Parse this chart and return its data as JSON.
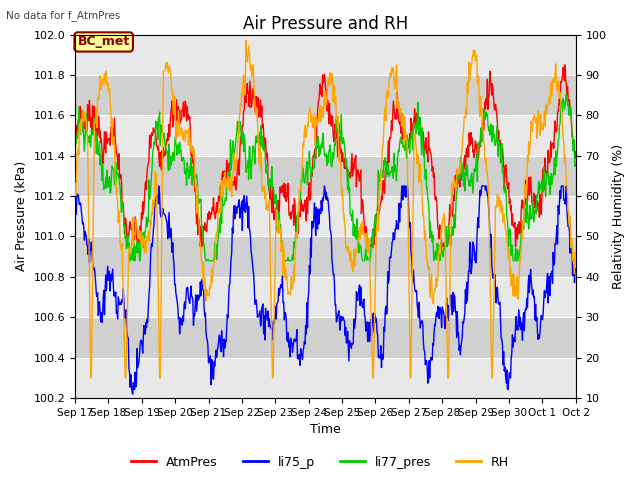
{
  "title": "Air Pressure and RH",
  "subtitle": "No data for f_AtmPres",
  "xlabel": "Time",
  "ylabel_left": "Air Pressure (kPa)",
  "ylabel_right": "Relativity Humidity (%)",
  "ylim_left": [
    100.2,
    102.0
  ],
  "ylim_right": [
    10,
    100
  ],
  "yticks_left": [
    100.2,
    100.4,
    100.6,
    100.8,
    101.0,
    101.2,
    101.4,
    101.6,
    101.8,
    102.0
  ],
  "yticks_right": [
    10,
    20,
    30,
    40,
    50,
    60,
    70,
    80,
    90,
    100
  ],
  "x_labels": [
    "Sep 17",
    "Sep 18",
    "Sep 19",
    "Sep 20",
    "Sep 21",
    "Sep 22",
    "Sep 23",
    "Sep 24",
    "Sep 25",
    "Sep 26",
    "Sep 27",
    "Sep 28",
    "Sep 29",
    "Sep 30",
    "Oct 1",
    "Oct 2"
  ],
  "legend_entries": [
    "AtmPres",
    "li75_p",
    "li77_pres",
    "RH"
  ],
  "line_colors": {
    "AtmPres": "#ff0000",
    "li75_p": "#0000ff",
    "li77_pres": "#00cc00",
    "RH": "#ffa500"
  },
  "annotation_text": "BC_met",
  "annotation_color": "#8b0000",
  "annotation_bg": "#ffff99",
  "background_color": "#ffffff",
  "plot_bg_light": "#e8e8e8",
  "plot_bg_dark": "#d0d0d0",
  "title_fontsize": 12,
  "label_fontsize": 9,
  "tick_fontsize": 8
}
